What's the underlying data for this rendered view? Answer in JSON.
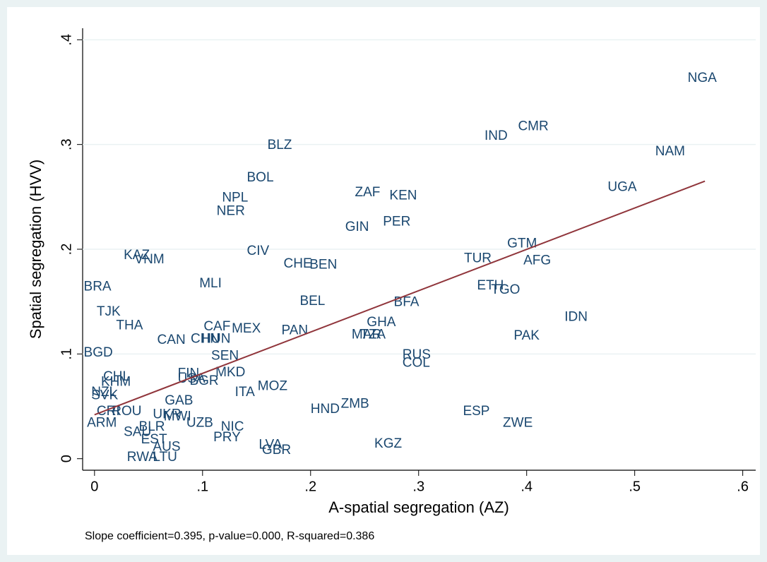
{
  "chart_data": {
    "type": "scatter",
    "xlabel": "A-spatial segregation (AZ)",
    "ylabel": "Spatial segregation (HVV)",
    "note": "Slope coefficient=0.395, p-value=0.000, R-squared=0.386",
    "labels": [
      "NGA",
      "CMR",
      "IND",
      "NAM",
      "UGA",
      "BLZ",
      "BOL",
      "NPL",
      "NER",
      "ZAF",
      "KEN",
      "PER",
      "GIN",
      "GTM",
      "CIV",
      "TUR",
      "AFG",
      "KAZ",
      "VNM",
      "CHE",
      "BEN",
      "BRA",
      "MLI",
      "ETH",
      "TGO",
      "BEL",
      "BFA",
      "IDN",
      "TJK",
      "THA",
      "GHA",
      "CAF",
      "MEX",
      "PAN",
      "MAR",
      "TZA",
      "PAK",
      "CAN",
      "CHN",
      "HUN",
      "BGD",
      "SEN",
      "RUS",
      "COL",
      "FIN",
      "USA",
      "MKD",
      "BGR",
      "CHL",
      "KHM",
      "NZL",
      "SVK",
      "MOZ",
      "ITA",
      "GAB",
      "ZMB",
      "HND",
      "ESP",
      "CRI",
      "ROU",
      "UKR",
      "MWI",
      "ZWE",
      "ARM",
      "UZB",
      "BLR",
      "NIC",
      "SAU",
      "PRY",
      "EST",
      "KGZ",
      "AUS",
      "LVA",
      "GBR",
      "LTU",
      "RWA"
    ],
    "x": [
      0.549,
      0.392,
      0.361,
      0.519,
      0.475,
      0.16,
      0.141,
      0.118,
      0.113,
      0.241,
      0.273,
      0.267,
      0.232,
      0.382,
      0.141,
      0.342,
      0.397,
      0.027,
      0.037,
      0.175,
      0.199,
      -0.01,
      0.097,
      0.354,
      0.367,
      0.19,
      0.277,
      0.435,
      0.002,
      0.02,
      0.252,
      0.101,
      0.127,
      0.173,
      0.238,
      0.246,
      0.388,
      0.058,
      0.089,
      0.099,
      -0.01,
      0.108,
      0.285,
      0.285,
      0.077,
      0.077,
      0.112,
      0.088,
      0.008,
      0.006,
      -0.003,
      -0.003,
      0.151,
      0.13,
      0.065,
      0.228,
      0.2,
      0.341,
      0.002,
      0.016,
      0.054,
      0.064,
      0.378,
      -0.007,
      0.085,
      0.041,
      0.117,
      0.027,
      0.11,
      0.043,
      0.259,
      0.054,
      0.152,
      0.155,
      0.054,
      0.03
    ],
    "values": [
      0.363,
      0.317,
      0.308,
      0.293,
      0.259,
      0.299,
      0.268,
      0.249,
      0.236,
      0.254,
      0.251,
      0.226,
      0.221,
      0.205,
      0.198,
      0.191,
      0.189,
      0.194,
      0.19,
      0.186,
      0.185,
      0.164,
      0.167,
      0.165,
      0.161,
      0.15,
      0.149,
      0.135,
      0.14,
      0.127,
      0.13,
      0.126,
      0.124,
      0.122,
      0.118,
      0.118,
      0.117,
      0.113,
      0.114,
      0.114,
      0.101,
      0.098,
      0.099,
      0.091,
      0.081,
      0.076,
      0.082,
      0.074,
      0.078,
      0.073,
      0.063,
      0.06,
      0.069,
      0.063,
      0.055,
      0.052,
      0.047,
      0.045,
      0.045,
      0.045,
      0.042,
      0.04,
      0.034,
      0.034,
      0.034,
      0.03,
      0.03,
      0.025,
      0.02,
      0.018,
      0.014,
      0.011,
      0.013,
      0.008,
      0.001,
      0.001
    ],
    "color": "#1a476f",
    "fit": {
      "x": [
        0,
        0.565
      ],
      "values": [
        0.042,
        0.265
      ],
      "color": "#90353b"
    },
    "xlim": [
      -0.011,
      0.612
    ],
    "ylim": [
      -0.011,
      0.411
    ],
    "xticks": [
      0,
      {
        "value": 0.1,
        "label": ".1"
      },
      {
        "value": 0.2,
        "label": ".2"
      },
      {
        "value": 0.3,
        "label": ".3"
      },
      {
        "value": 0.4,
        "label": ".4"
      },
      {
        "value": 0.5,
        "label": ".5"
      },
      {
        "value": 0.6,
        "label": ".6"
      }
    ],
    "yticks": [
      0,
      {
        "value": 0.1,
        "label": ".1"
      },
      {
        "value": 0.2,
        "label": ".2"
      },
      {
        "value": 0.3,
        "label": ".3"
      },
      {
        "value": 0.4,
        "label": ".4"
      }
    ],
    "grid": true
  }
}
